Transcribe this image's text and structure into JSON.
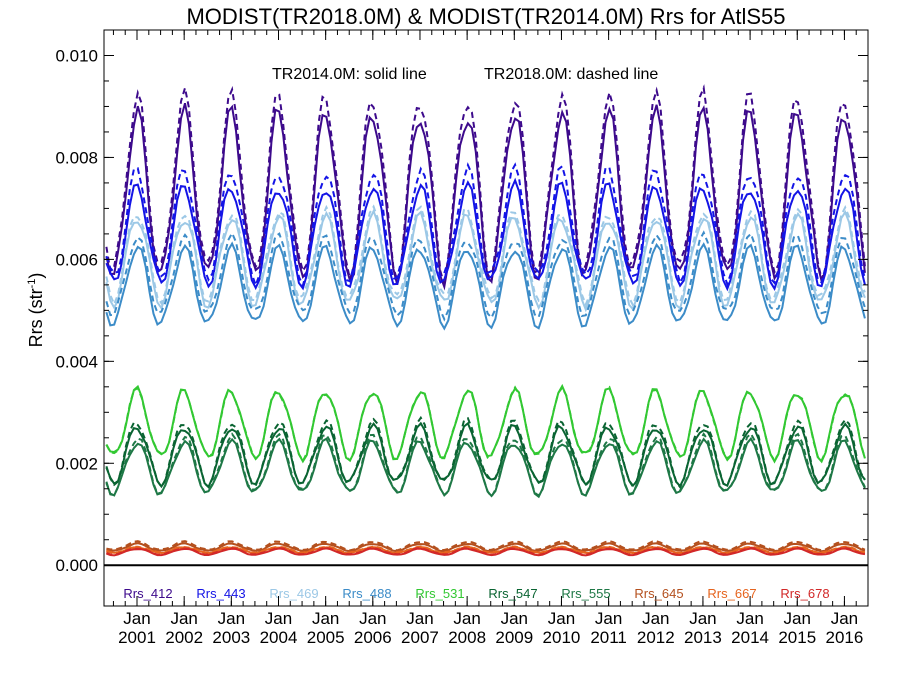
{
  "chart_data": {
    "type": "line",
    "title": "MODIST(TR2018.0M) & MODIST(TR2014.0M)  Rrs for AtlS55",
    "ylabel": "Rrs (str",
    "ylabel_sup": "-1",
    "ylabel_close": ")",
    "xlabel": "",
    "annotation_solid": "TR2014.0M: solid line",
    "annotation_dashed": "TR2018.0M: dashed line",
    "xlim": [
      2000.3,
      2016.5
    ],
    "ylim": [
      -0.0008,
      0.0105
    ],
    "y_ticks": [
      0.0,
      0.002,
      0.004,
      0.006,
      0.008,
      0.01
    ],
    "y_tick_labels": [
      "0.000",
      "0.002",
      "0.004",
      "0.006",
      "0.008",
      "0.010"
    ],
    "x_ticks": [
      2001,
      2002,
      2003,
      2004,
      2005,
      2006,
      2007,
      2008,
      2009,
      2010,
      2011,
      2012,
      2013,
      2014,
      2015,
      2016
    ],
    "x_tick_labels": [
      [
        "Jan",
        "2001"
      ],
      [
        "Jan",
        "2002"
      ],
      [
        "Jan",
        "2003"
      ],
      [
        "Jan",
        "2004"
      ],
      [
        "Jan",
        "2005"
      ],
      [
        "Jan",
        "2006"
      ],
      [
        "Jan",
        "2007"
      ],
      [
        "Jan",
        "2008"
      ],
      [
        "Jan",
        "2009"
      ],
      [
        "Jan",
        "2010"
      ],
      [
        "Jan",
        "2011"
      ],
      [
        "Jan",
        "2012"
      ],
      [
        "Jan",
        "2013"
      ],
      [
        "Jan",
        "2014"
      ],
      [
        "Jan",
        "2015"
      ],
      [
        "Jan",
        "2016"
      ]
    ],
    "zero_line": 0,
    "legend_position": "bottom",
    "series": [
      {
        "name": "Rrs_412",
        "color": "#3d0a8c",
        "peak": 0.0088,
        "trough": 0.0056,
        "peak_d": 0.0091,
        "trough_d": 0.0057
      },
      {
        "name": "Rrs_443",
        "color": "#1414e6",
        "peak": 0.0074,
        "trough": 0.0055,
        "peak_d": 0.0077,
        "trough_d": 0.0056
      },
      {
        "name": "Rrs_469",
        "color": "#9cc8e6",
        "peak": 0.0068,
        "trough": 0.0051,
        "peak_d": 0.0069,
        "trough_d": 0.0052
      },
      {
        "name": "Rrs_488",
        "color": "#3c8cc8",
        "peak": 0.0062,
        "trough": 0.0047,
        "peak_d": 0.0064,
        "trough_d": 0.0049
      },
      {
        "name": "Rrs_531",
        "color": "#32c832",
        "peak": 0.0034,
        "trough": 0.0021,
        "peak_d": 0.0034,
        "trough_d": 0.0021
      },
      {
        "name": "Rrs_547",
        "color": "#0a6432",
        "peak": 0.0027,
        "trough": 0.0016,
        "peak_d": 0.0028,
        "trough_d": 0.0016
      },
      {
        "name": "Rrs_555",
        "color": "#1e7846",
        "peak": 0.0024,
        "trough": 0.0014,
        "peak_d": 0.0025,
        "trough_d": 0.0014
      },
      {
        "name": "Rrs_645",
        "color": "#b4501e",
        "peak": 0.00042,
        "trough": 0.00028,
        "peak_d": 0.00046,
        "trough_d": 0.0003
      },
      {
        "name": "Rrs_667",
        "color": "#e6641e",
        "peak": 0.00035,
        "trough": 0.00024,
        "peak_d": 0.00036,
        "trough_d": 0.00025
      },
      {
        "name": "Rrs_678",
        "color": "#d22828",
        "peak": 0.00032,
        "trough": 0.0002,
        "peak_d": 0.00033,
        "trough_d": 0.00021
      }
    ]
  }
}
